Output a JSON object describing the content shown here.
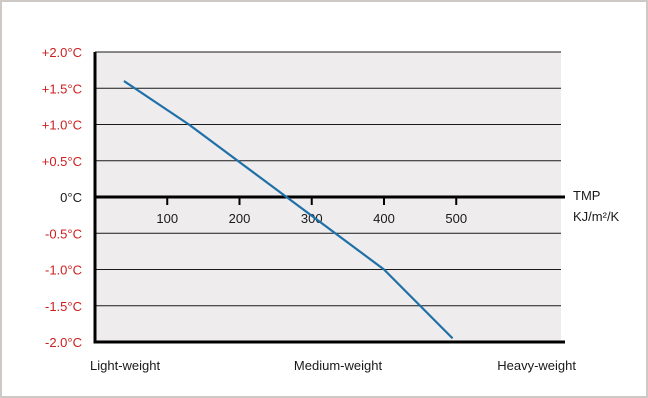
{
  "chart_data": {
    "type": "line",
    "y_ticks": [
      {
        "value": 2.0,
        "label": "+2.0°C"
      },
      {
        "value": 1.5,
        "label": "+1.5°C"
      },
      {
        "value": 1.0,
        "label": "+1.0°C"
      },
      {
        "value": 0.5,
        "label": "+0.5°C"
      },
      {
        "value": 0.0,
        "label": "0°C"
      },
      {
        "value": -0.5,
        "label": "-0.5°C"
      },
      {
        "value": -1.0,
        "label": "-1.0°C"
      },
      {
        "value": -1.5,
        "label": "-1.5°C"
      },
      {
        "value": -2.0,
        "label": "-2.0°C"
      }
    ],
    "x_ticks": [
      {
        "value": 100,
        "label": "100"
      },
      {
        "value": 200,
        "label": "200"
      },
      {
        "value": 300,
        "label": "300"
      },
      {
        "value": 400,
        "label": "400"
      },
      {
        "value": 500,
        "label": "500"
      }
    ],
    "xlim": [
      0,
      645
    ],
    "ylim": [
      -2.0,
      2.0
    ],
    "x_unit_label": [
      "TMP",
      "KJ/m²/K"
    ],
    "categories": [
      {
        "label": "Light-weight",
        "x": 40
      },
      {
        "label": "Medium-weight",
        "x": 300
      },
      {
        "label": "Heavy-weight",
        "x": 560
      }
    ],
    "series": [
      {
        "points": [
          [
            40,
            1.6
          ],
          [
            130,
            1.0
          ],
          [
            265,
            0.0
          ],
          [
            400,
            -1.0
          ],
          [
            495,
            -1.95
          ]
        ]
      }
    ],
    "grid": true,
    "colors": {
      "line": "#1f6fa8",
      "positive_label": "#cc1e1e",
      "negative_label": "#cc1e1e",
      "zero_label": "#1a1a1a",
      "plot_bg": "#eeecec",
      "frame": "#cfc9c6"
    }
  }
}
